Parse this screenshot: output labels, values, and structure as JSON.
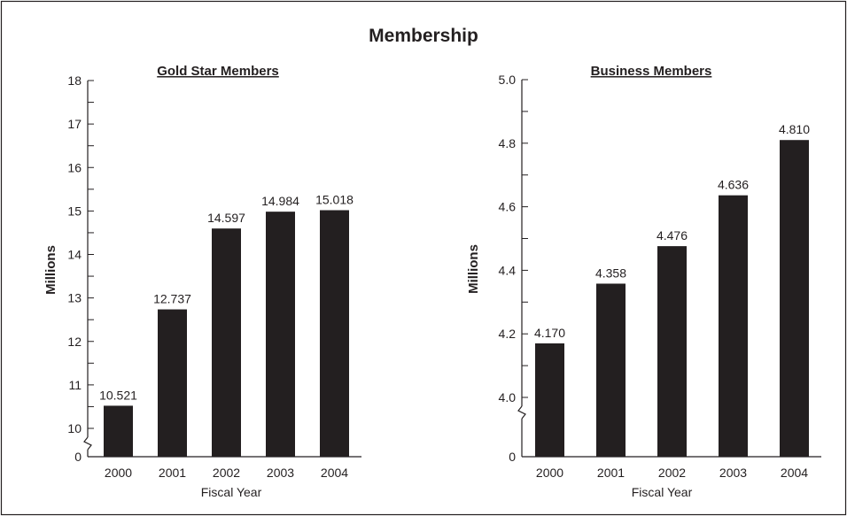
{
  "title": "Membership",
  "chart_data": [
    {
      "type": "bar",
      "title": "Gold Star Members",
      "xlabel": "Fiscal Year",
      "ylabel": "Millions",
      "categories": [
        "2000",
        "2001",
        "2002",
        "2003",
        "2004"
      ],
      "values": [
        10.521,
        12.737,
        14.597,
        14.984,
        15.018
      ],
      "data_labels": [
        "10.521",
        "12.737",
        "14.597",
        "14.984",
        "15.018"
      ],
      "ylim": [
        10,
        18
      ],
      "yticks": [
        "10",
        "11",
        "12",
        "13",
        "14",
        "15",
        "16",
        "17",
        "18"
      ],
      "y_zero_label": "0",
      "axis_break": true,
      "grid": false,
      "bar_color": "#231f20"
    },
    {
      "type": "bar",
      "title": "Business Members",
      "xlabel": "Fiscal Year",
      "ylabel": "Millions",
      "categories": [
        "2000",
        "2001",
        "2002",
        "2003",
        "2004"
      ],
      "values": [
        4.17,
        4.358,
        4.476,
        4.636,
        4.81
      ],
      "data_labels": [
        "4.170",
        "4.358",
        "4.476",
        "4.636",
        "4.810"
      ],
      "ylim": [
        4.0,
        5.0
      ],
      "yticks": [
        "4.0",
        "4.2",
        "4.4",
        "4.6",
        "4.8",
        "5.0"
      ],
      "y_zero_label": "0",
      "axis_break": true,
      "grid": false,
      "bar_color": "#231f20"
    }
  ]
}
